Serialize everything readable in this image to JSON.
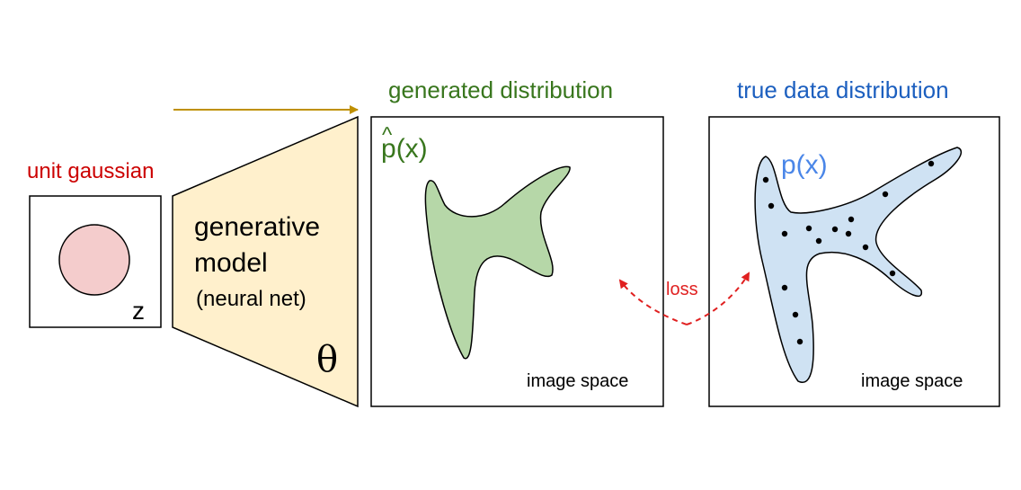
{
  "labels": {
    "unit_gaussian": "unit gaussian",
    "z": "z",
    "model_line1": "generative",
    "model_line2": "model",
    "model_line3": "(neural net)",
    "theta": "θ",
    "generated_distribution": "generated distribution",
    "p_hat": "p",
    "hat": "^",
    "p_hat_arg": "(x)",
    "true_data_distribution": "true data distribution",
    "p_x": "p(x)",
    "image_space_left": "image space",
    "image_space_right": "image space",
    "loss": "loss"
  },
  "colors": {
    "unit_gaussian": "#cc0000",
    "generated": "#38761d",
    "true_data": "#1c5fbf",
    "p_x": "#4a86e8",
    "circle_fill": "#f4cccc",
    "model_fill": "#fff0cc",
    "green_fill": "#b6d7a8",
    "blue_fill": "#cfe2f3",
    "arrow": "#bf9000",
    "loss": "#e02020"
  }
}
